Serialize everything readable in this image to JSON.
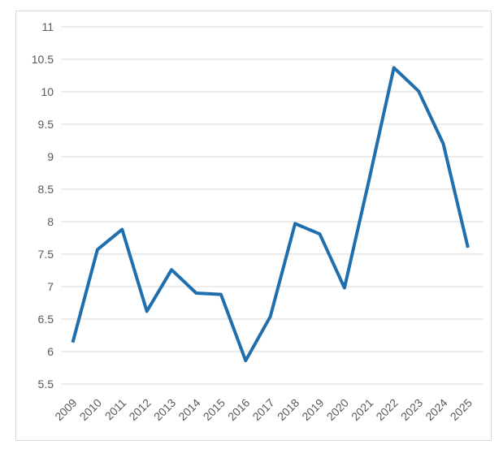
{
  "chart_data": {
    "type": "line",
    "title": "",
    "xlabel": "",
    "ylabel": "",
    "categories": [
      "2009",
      "2010",
      "2011",
      "2012",
      "2013",
      "2014",
      "2015",
      "2016",
      "2017",
      "2018",
      "2019",
      "2020",
      "2021",
      "2022",
      "2023",
      "2024",
      "2025"
    ],
    "values": [
      6.14,
      7.57,
      7.88,
      6.62,
      7.26,
      6.9,
      6.88,
      5.86,
      6.54,
      7.97,
      7.81,
      6.98,
      8.65,
      10.37,
      10.01,
      9.2,
      7.6
    ],
    "ylim": [
      5.5,
      11
    ],
    "ytick_step": 0.5,
    "ytick_labels": [
      "11",
      "10.5",
      "10",
      "9.5",
      "9",
      "8.5",
      "8",
      "7.5",
      "7",
      "6.5",
      "6",
      "5.5"
    ],
    "grid": "horizontal-only",
    "legend": "none",
    "x_label_rotation_deg": 45
  },
  "style": {
    "line_color": "#1F6EAD",
    "gridline_color": "#D9D9D9",
    "chart_border_color": "#D9D9D9",
    "axis_text_color": "#595959",
    "background_color": "#FFFFFF"
  }
}
